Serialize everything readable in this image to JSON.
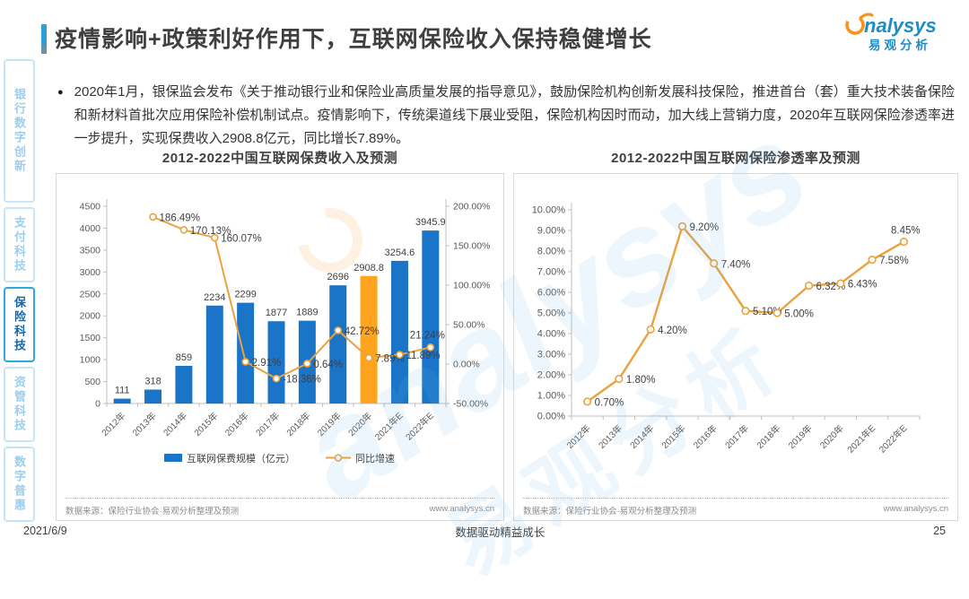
{
  "header": {
    "title": "疫情影响+政策利好作用下，互联网保险收入保持稳健增长",
    "logo_brand": "nalysys",
    "logo_cn": "易观分析"
  },
  "sidebar": {
    "items": [
      {
        "label": "银行数字创新",
        "active": false
      },
      {
        "label": "支付科技",
        "active": false
      },
      {
        "label": "保险科技",
        "active": true
      },
      {
        "label": "资管科技",
        "active": false
      },
      {
        "label": "数字普惠",
        "active": false
      }
    ]
  },
  "bullet": {
    "marker": "●",
    "text": "2020年1月，银保监会发布《关于推动银行业和保险业高质量发展的指导意见》，鼓励保险机构创新发展科技保险，推进首台（套）重大技术装备保险和新材料首批次应用保险补偿机制试点。疫情影响下，传统渠道线下展业受阻，保险机构因时而动，加大线上营销力度，2020年互联网保险渗透率进一步提升，实现保费收入2908.8亿元，同比增长7.89%。"
  },
  "chart_data": [
    {
      "type": "bar",
      "title": "2012-2022中国互联网保费收入及预测",
      "categories": [
        "2012年",
        "2013年",
        "2014年",
        "2015年",
        "2016年",
        "2017年",
        "2018年",
        "2019年",
        "2020年",
        "2021年E",
        "2022年E"
      ],
      "highlight_index": 8,
      "series": [
        {
          "name": "互联网保费规模（亿元）",
          "type": "bar",
          "axis": "left",
          "values": [
            111,
            318,
            859,
            2234,
            2299,
            1877,
            1889,
            2696,
            2908.8,
            3254.6,
            3945.9
          ]
        },
        {
          "name": "同比增速",
          "type": "line",
          "axis": "right",
          "values": [
            null,
            186.49,
            170.13,
            160.07,
            2.91,
            -18.36,
            0.64,
            42.72,
            7.89,
            11.89,
            21.24
          ],
          "labels": [
            null,
            "186.49%",
            "170.13%",
            "160.07%",
            "2.91%",
            "-18.36%",
            "0.64%",
            "42.72%",
            "7.89%",
            "11.89%",
            "21.24%"
          ]
        }
      ],
      "left_axis": {
        "min": 0,
        "max": 4500,
        "step": 500
      },
      "right_axis": {
        "min": -50,
        "max": 200,
        "step": 50,
        "format": "percent"
      },
      "legend_position": "bottom",
      "grid": false,
      "source": "数据来源：保险行业协会·易观分析整理及预测",
      "site": "www.analysys.cn"
    },
    {
      "type": "line",
      "title": "2012-2022中国互联网保险渗透率及预测",
      "categories": [
        "2012年",
        "2013年",
        "2014年",
        "2015年",
        "2016年",
        "2017年",
        "2018年",
        "2019年",
        "2020年",
        "2021年E",
        "2022年E"
      ],
      "values": [
        0.7,
        1.8,
        4.2,
        9.2,
        7.4,
        5.1,
        5.0,
        6.32,
        6.43,
        7.58,
        8.45
      ],
      "labels": [
        "0.70%",
        "1.80%",
        "4.20%",
        "9.20%",
        "7.40%",
        "5.10%",
        "5.00%",
        "6.32%",
        "6.43%",
        "7.58%",
        "8.45%"
      ],
      "y_axis": {
        "min": 0,
        "max": 10,
        "step": 1,
        "format": "percent"
      },
      "legend_position": "none",
      "grid": false,
      "source": "数据来源：保险行业协会·易观分析整理及预测",
      "site": "www.analysys.cn"
    }
  ],
  "footer": {
    "date": "2021/6/9",
    "slogan": "数据驱动精益成长",
    "page": "25"
  },
  "colors": {
    "bar_blue": "#1A74C8",
    "bar_highlight": "#FFA41E",
    "line_orange": "#EBA23E",
    "axis": "#BFBFBF",
    "tick_text": "#595959",
    "label_text": "#404040",
    "accent_blue": "#29ABE2",
    "logo_blue": "#1C8DC6",
    "logo_orange": "#F7941E"
  }
}
